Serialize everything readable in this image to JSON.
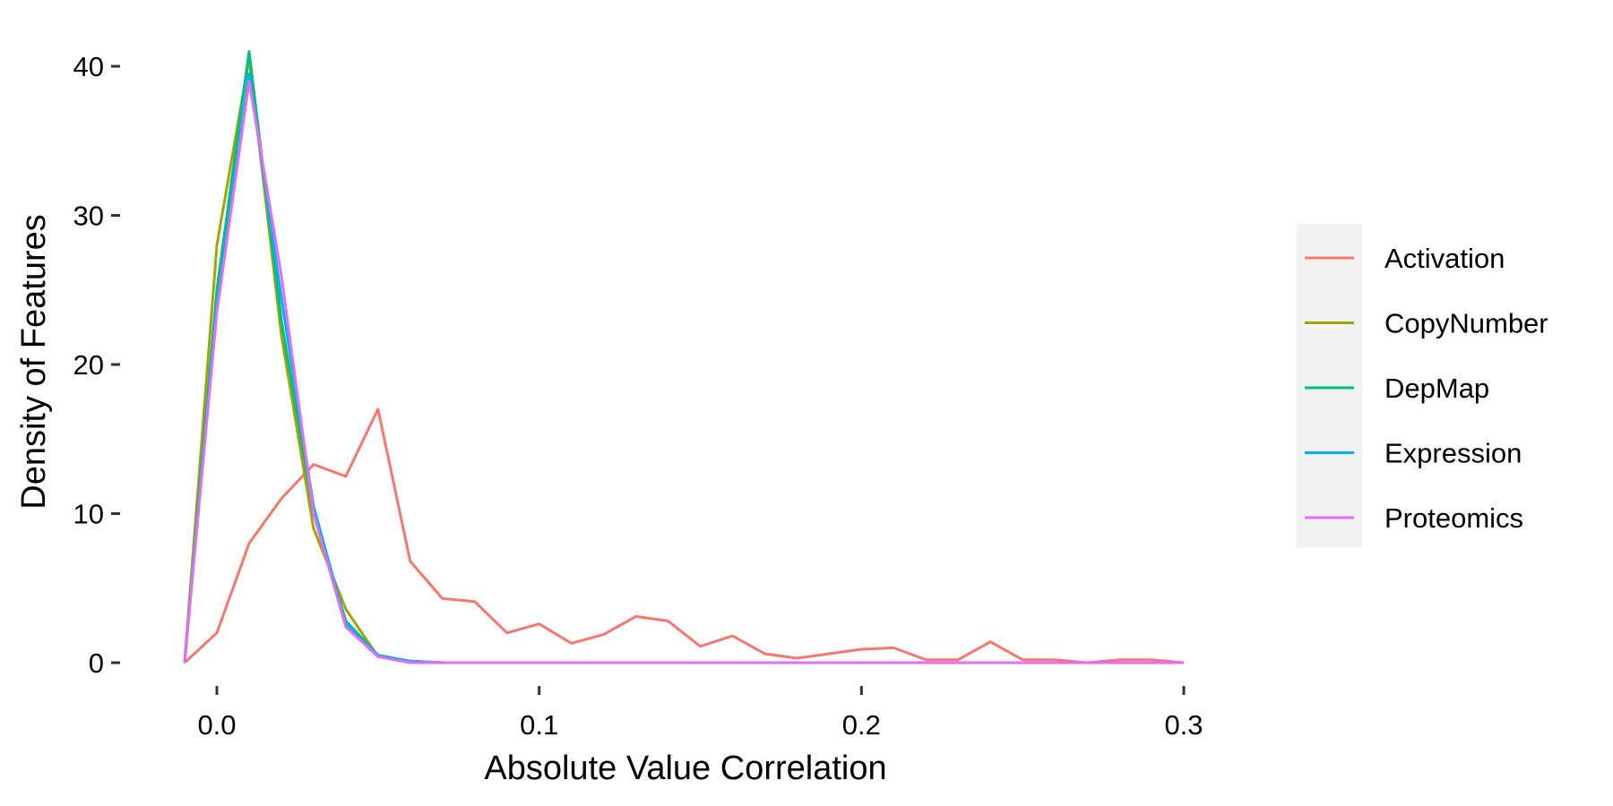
{
  "chart_data": {
    "type": "line",
    "title": "",
    "xlabel": "Absolute Value Correlation",
    "ylabel": "Density of Features",
    "xlim": [
      -0.015,
      0.3
    ],
    "ylim": [
      -2.2,
      42
    ],
    "x_ticks": [
      0.0,
      0.1,
      0.2,
      0.3
    ],
    "x_tick_labels": [
      "0.0",
      "0.1",
      "0.2",
      "0.3"
    ],
    "y_ticks": [
      0,
      10,
      20,
      30,
      40
    ],
    "y_tick_labels": [
      "0",
      "10",
      "20",
      "30",
      "40"
    ],
    "grid": false,
    "legend_position": "right",
    "series": [
      {
        "name": "Activation",
        "color": "#F8766D",
        "x": [
          -0.01,
          0.0,
          0.01,
          0.02,
          0.03,
          0.04,
          0.05,
          0.06,
          0.07,
          0.08,
          0.09,
          0.1,
          0.11,
          0.12,
          0.13,
          0.14,
          0.15,
          0.16,
          0.17,
          0.18,
          0.19,
          0.2,
          0.21,
          0.22,
          0.23,
          0.24,
          0.25,
          0.26,
          0.27,
          0.28,
          0.29,
          0.3
        ],
        "values": [
          0.0,
          2.0,
          8.0,
          11.0,
          13.3,
          12.5,
          17.0,
          6.8,
          4.3,
          4.1,
          2.0,
          2.6,
          1.3,
          1.9,
          3.1,
          2.8,
          1.1,
          1.8,
          0.6,
          0.3,
          0.6,
          0.9,
          1.0,
          0.2,
          0.2,
          1.4,
          0.2,
          0.2,
          0.0,
          0.2,
          0.2,
          0.0
        ]
      },
      {
        "name": "CopyNumber",
        "color": "#A3A500",
        "x": [
          -0.01,
          0.0,
          0.01,
          0.02,
          0.03,
          0.04,
          0.05,
          0.06,
          0.07,
          0.08,
          0.09,
          0.1,
          0.15,
          0.2,
          0.25,
          0.3
        ],
        "values": [
          0.0,
          28.0,
          40.5,
          22.0,
          9.0,
          3.6,
          0.4,
          0.1,
          0.0,
          0.0,
          0.0,
          0.0,
          0.0,
          0.0,
          0.0,
          0.0
        ]
      },
      {
        "name": "DepMap",
        "color": "#00BF7D",
        "x": [
          -0.01,
          0.0,
          0.01,
          0.02,
          0.03,
          0.04,
          0.05,
          0.06,
          0.07,
          0.08,
          0.09,
          0.1,
          0.15,
          0.2,
          0.25,
          0.3
        ],
        "values": [
          0.0,
          25.0,
          41.0,
          23.0,
          10.0,
          2.8,
          0.5,
          0.1,
          0.0,
          0.0,
          0.0,
          0.0,
          0.0,
          0.0,
          0.0,
          0.0
        ]
      },
      {
        "name": "Expression",
        "color": "#00B0F6",
        "x": [
          -0.01,
          0.0,
          0.01,
          0.02,
          0.03,
          0.04,
          0.05,
          0.06,
          0.07,
          0.08,
          0.09,
          0.1,
          0.15,
          0.2,
          0.25,
          0.3
        ],
        "values": [
          0.0,
          24.0,
          39.5,
          24.5,
          10.5,
          2.6,
          0.5,
          0.1,
          0.0,
          0.0,
          0.0,
          0.0,
          0.0,
          0.0,
          0.0,
          0.0
        ]
      },
      {
        "name": "Proteomics",
        "color": "#E76BF3",
        "x": [
          -0.01,
          0.0,
          0.01,
          0.02,
          0.03,
          0.04,
          0.05,
          0.06,
          0.07,
          0.08,
          0.09,
          0.1,
          0.15,
          0.2,
          0.25,
          0.3
        ],
        "values": [
          0.0,
          23.5,
          39.0,
          26.0,
          10.0,
          2.4,
          0.4,
          0.0,
          0.0,
          0.0,
          0.0,
          0.0,
          0.0,
          0.0,
          0.0,
          0.0
        ]
      }
    ]
  }
}
